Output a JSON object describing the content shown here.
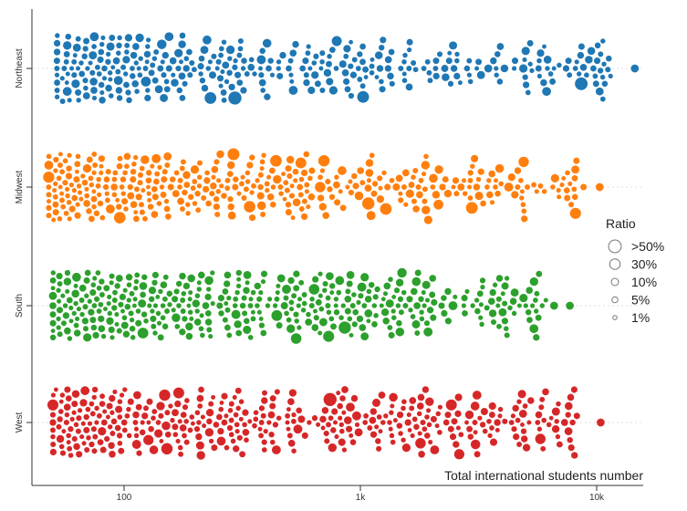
{
  "chart_data": {
    "type": "scatter",
    "subtype": "beeswarm",
    "xlabel": "Total international students number",
    "x_scale": "log",
    "xlim": [
      40,
      16000
    ],
    "x_ticks": [
      {
        "value": 100,
        "label": "100"
      },
      {
        "value": 1000,
        "label": "1k"
      },
      {
        "value": 10000,
        "label": "10k"
      }
    ],
    "grid": false,
    "legend": {
      "title": "Ratio",
      "placement": "right",
      "items": [
        {
          "label": ">50%",
          "ratio": 50
        },
        {
          "label": "30%",
          "ratio": 30
        },
        {
          "label": "10%",
          "ratio": 10
        },
        {
          "label": "5%",
          "ratio": 5
        },
        {
          "label": "1%",
          "ratio": 1
        }
      ]
    },
    "series": [
      {
        "name": "Northeast",
        "color": "#1f77b4",
        "approx_points": 440,
        "x_range": [
          52,
          14500
        ],
        "distinct_points": [
          {
            "x": 14500,
            "ratio": 10
          },
          {
            "x": 10300,
            "ratio": 10
          },
          {
            "x": 7600,
            "ratio": 5
          },
          {
            "x": 6200,
            "ratio": 10
          }
        ]
      },
      {
        "name": "Midwest",
        "color": "#ff7f0e",
        "approx_points": 520,
        "x_range": [
          48,
          10300
        ],
        "distinct_points": [
          {
            "x": 10300,
            "ratio": 10
          },
          {
            "x": 8800,
            "ratio": 5
          }
        ]
      },
      {
        "name": "South",
        "color": "#2ca02c",
        "approx_points": 640,
        "x_range": [
          50,
          7700
        ],
        "distinct_points": [
          {
            "x": 7700,
            "ratio": 10
          },
          {
            "x": 6600,
            "ratio": 10
          }
        ]
      },
      {
        "name": "West",
        "color": "#d62728",
        "approx_points": 500,
        "x_range": [
          50,
          10400
        ],
        "distinct_points": [
          {
            "x": 10400,
            "ratio": 10
          },
          {
            "x": 7600,
            "ratio": 10
          }
        ]
      }
    ]
  }
}
